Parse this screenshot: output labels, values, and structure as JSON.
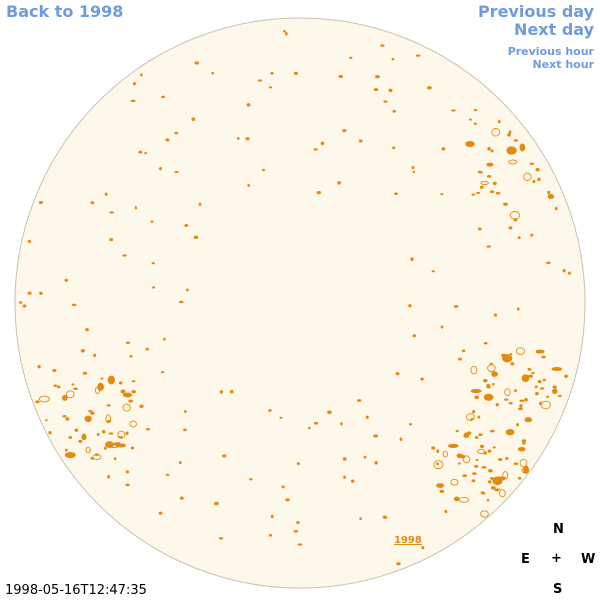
{
  "nav": {
    "back_label": "Back to 1998",
    "previous_day": "Previous day",
    "next_day": "Next day",
    "previous_hour": "Previous hour",
    "next_hour": "Next hour"
  },
  "compass": {
    "north": "N",
    "east": "E",
    "center": "+",
    "west": "W",
    "south": "S"
  },
  "timestamp": "1998-05-16T12:47:35",
  "year_link": "1998",
  "colors": {
    "link": "#6f9be0",
    "disk_fill": "#fdf8ea",
    "disk_edge": "#c9c2b0",
    "contour": "#e58a10"
  }
}
